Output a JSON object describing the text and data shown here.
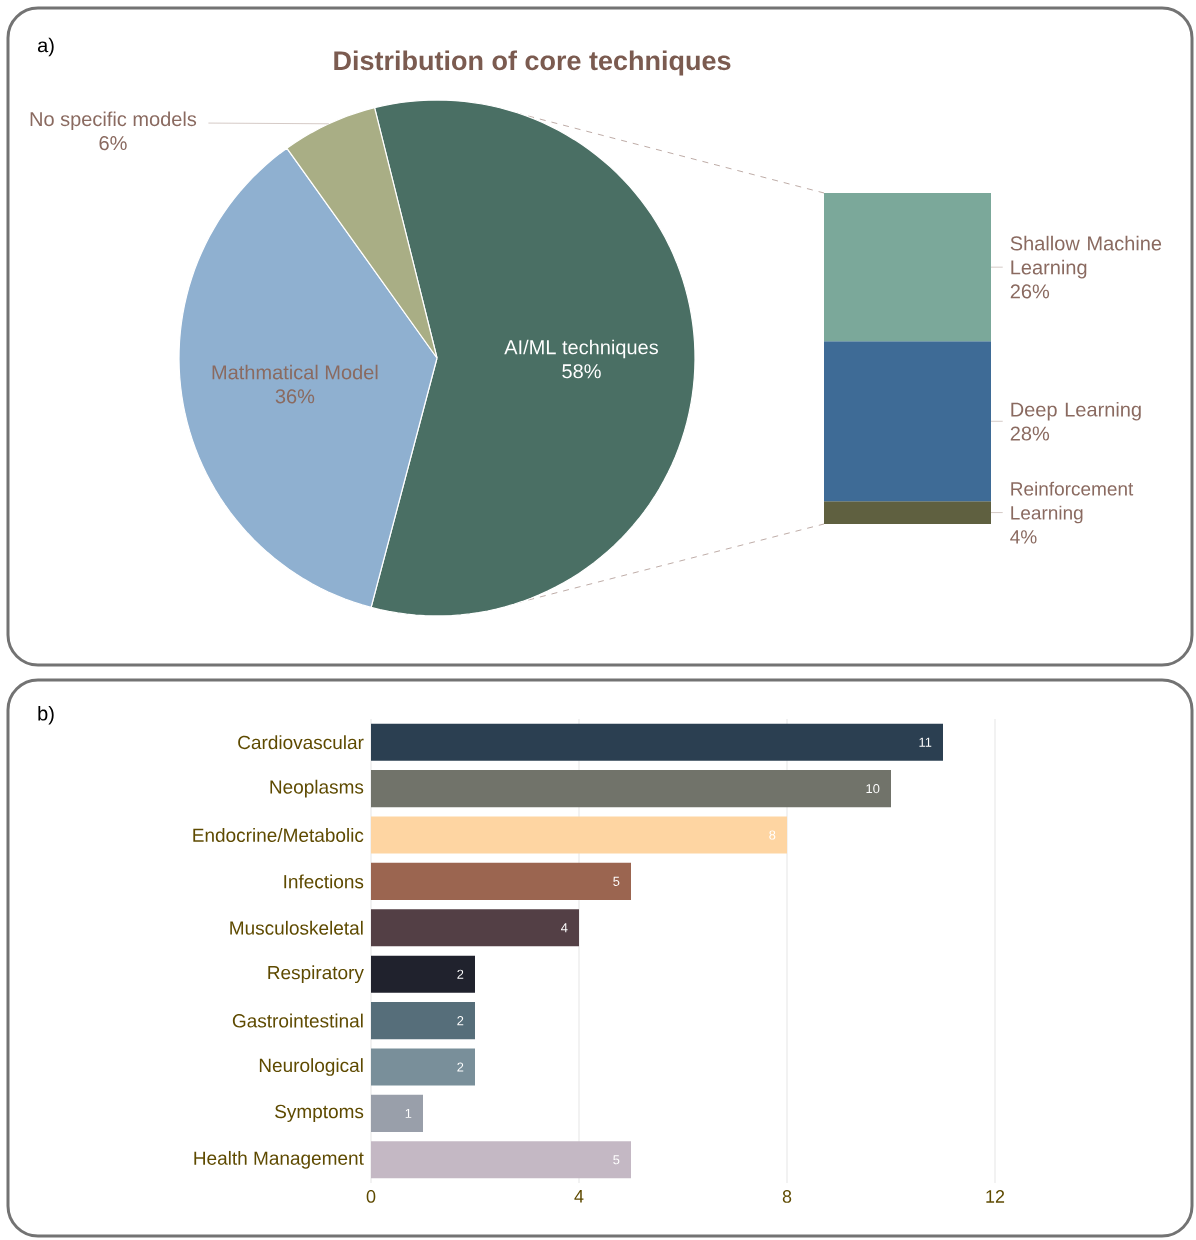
{
  "chart_data": [
    {
      "type": "pie",
      "title": "Distribution of core techniques",
      "categories": [
        "AI/ML techniques",
        "Mathmatical Model",
        "No specific models"
      ],
      "values": [
        58,
        36,
        6
      ],
      "value_labels": [
        "58%",
        "36%",
        "6%"
      ],
      "colors": [
        "#4a6f64",
        "#8fb0d0",
        "#a9ae85"
      ],
      "annotations": [
        "a)"
      ]
    },
    {
      "type": "bar",
      "stacked": true,
      "categories": [
        null
      ],
      "series": [
        {
          "name": "Reinforcement Learning",
          "color": "#5f6040",
          "values": [
            4
          ],
          "value_labels": [
            "4%"
          ]
        },
        {
          "name": "Deep Learning",
          "color": "#3e6b96",
          "values": [
            28
          ],
          "value_labels": [
            "28%"
          ]
        },
        {
          "name": "Shallow Machine Learning",
          "color": "#7ba89a",
          "values": [
            26
          ],
          "value_labels": [
            "26%"
          ]
        }
      ]
    },
    {
      "type": "bar",
      "orientation": "horizontal",
      "categories": [
        "Cardiovascular",
        "Neoplasms",
        "Endocrine/Metabolic",
        "Infections",
        "Musculoskeletal",
        "Respiratory",
        "Gastrointestinal",
        "Neurological",
        "Symptoms",
        "Health Management"
      ],
      "values": [
        11,
        10,
        8,
        5,
        4,
        2,
        2,
        2,
        1,
        5
      ],
      "colors": [
        "#2b3f51",
        "#71736a",
        "#fed5a2",
        "#9b6550",
        "#533f45",
        "#20222d",
        "#566e7a",
        "#798f9a",
        "#999faa",
        "#c4b8c4"
      ],
      "xlim": [
        0,
        12
      ],
      "xticks": [
        0,
        4,
        8,
        12
      ],
      "grid": "x",
      "data_labels": true,
      "annotations": [
        "b)"
      ]
    }
  ]
}
